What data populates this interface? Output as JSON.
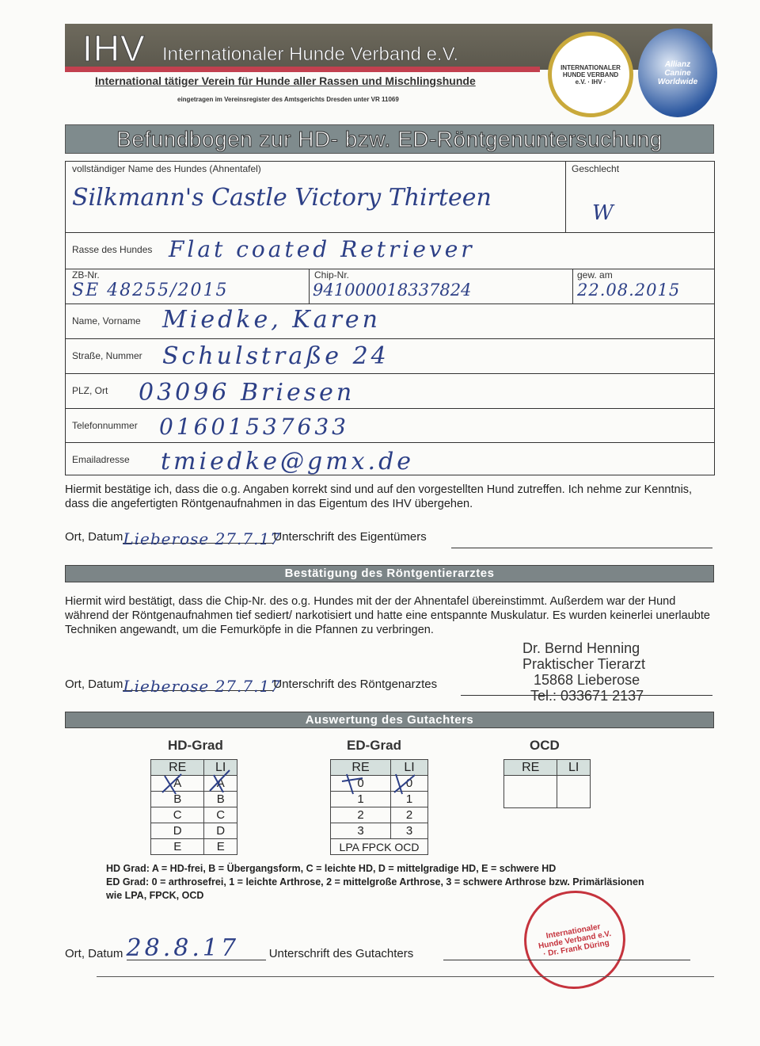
{
  "header": {
    "logo_text": "IHV",
    "org_name": "Internationaler Hunde Verband e.V.",
    "subtitle": "International tätiger Verein für Hunde aller Rassen und Mischlingshunde",
    "registration": "eingetragen im Vereinsregister des Amtsgerichts Dresden unter VR 11069",
    "seal_text": "INTERNATIONALER HUNDE VERBAND e.V. · IHV ·",
    "globe_text": "Allianz Canine Worldwide"
  },
  "title": "Befundbogen zur HD- bzw. ED-Röntgenuntersuchung",
  "form": {
    "dog_name": {
      "label": "vollständiger Name des Hundes (Ahnentafel)",
      "value": "Silkmann's Castle Victory Thirteen"
    },
    "sex": {
      "label": "Geschlecht",
      "value": "W"
    },
    "breed": {
      "label": "Rasse des Hundes",
      "value": "Flat coated Retriever"
    },
    "zb_nr": {
      "label": "ZB-Nr.",
      "value": "SE 48255/2015"
    },
    "chip_nr": {
      "label": "Chip-Nr.",
      "value": "941000018337824"
    },
    "born": {
      "label": "gew. am",
      "value": "22.08.2015"
    },
    "owner_name": {
      "label": "Name, Vorname",
      "value": "Miedke, Karen"
    },
    "street": {
      "label": "Straße, Nummer",
      "value": "Schulstraße 24"
    },
    "city": {
      "label": "PLZ, Ort",
      "value": "03096 Briesen"
    },
    "phone": {
      "label": "Telefonnummer",
      "value": "01601537633"
    },
    "email": {
      "label": "Emailadresse",
      "value": "tmiedke@gmx.de"
    }
  },
  "owner_confirmation": {
    "text": "Hiermit bestätige ich, dass die o.g. Angaben korrekt sind und auf den vorgestellten Hund zutreffen. Ich nehme zur Kenntnis, dass die angefertigten Röntgenaufnahmen in das Eigentum des IHV übergehen.",
    "place_date_label": "Ort, Datum",
    "place_date_value": "Lieberose 27.7.17",
    "signature_label": "Unterschrift des Eigentümers"
  },
  "vet_section": {
    "title": "Bestätigung des Röntgentierarztes",
    "text": "Hiermit wird bestätigt, dass die Chip-Nr. des o.g. Hundes mit der der Ahnentafel übereinstimmt. Außerdem war der Hund während der Röntgenaufnahmen tief sediert/ narkotisiert und hatte eine entspannte Muskulatur. Es wurden keinerlei unerlaubte Techniken angewandt, um die Femurköpfe in die Pfannen zu verbringen.",
    "place_date_label": "Ort, Datum",
    "place_date_value": "Lieberose 27.7.17",
    "signature_label": "Unterschrift des Röntgenarztes",
    "stamp": [
      "Dr. Bernd Henning",
      "Praktischer Tierarzt",
      "15868 Lieberose",
      "Tel.: 033671 2137"
    ]
  },
  "evaluation": {
    "title": "Auswertung des Gutachters",
    "hd": {
      "title": "HD-Grad",
      "headers": [
        "RE",
        "LI"
      ],
      "rows": [
        [
          "A",
          "A"
        ],
        [
          "B",
          "B"
        ],
        [
          "C",
          "C"
        ],
        [
          "D",
          "D"
        ],
        [
          "E",
          "E"
        ]
      ],
      "marked": "A"
    },
    "ed": {
      "title": "ED-Grad",
      "headers": [
        "RE",
        "LI"
      ],
      "rows": [
        [
          "0",
          "0"
        ],
        [
          "1",
          "1"
        ],
        [
          "2",
          "2"
        ],
        [
          "3",
          "3"
        ]
      ],
      "footer": "LPA FPCK OCD",
      "marked": "0"
    },
    "ocd": {
      "title": "OCD",
      "headers": [
        "RE",
        "LI"
      ]
    },
    "legend_hd": "HD Grad: A = HD-frei, B = Übergangsform, C = leichte HD, D = mittelgradige HD, E = schwere HD",
    "legend_ed": "ED Grad: 0 = arthrosefrei, 1 = leichte Arthrose, 2 = mittelgroße Arthrose, 3 = schwere Arthrose bzw. Primärläsionen",
    "legend_ed2": "wie LPA, FPCK, OCD",
    "place_date_label": "Ort, Datum",
    "place_date_value": "28.8.17",
    "signature_label": "Unterschrift des Gutachters",
    "stamp_text": "Internationaler Hunde Verband e.V. · Dr. Frank Düring"
  },
  "colors": {
    "ink": "#2c3f86",
    "banner": "#6e6a5d",
    "accent_red": "#c2404f",
    "bar": "#7c8587",
    "table_header": "#d5e0dd"
  }
}
